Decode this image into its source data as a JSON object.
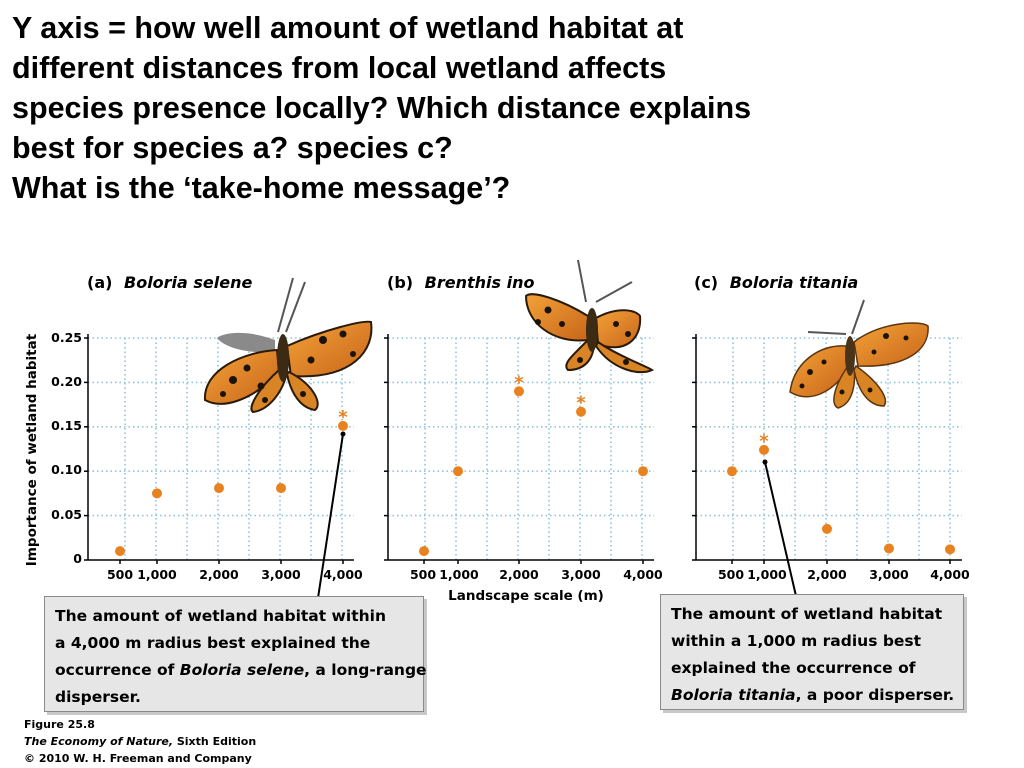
{
  "question": {
    "lines": [
      "Y axis = how well amount of wetland habitat at",
      "different distances from local wetland affects",
      "species presence locally?  Which distance explains",
      "best for species a? species c?",
      "What is the  ‘take-home message’?"
    ]
  },
  "chart_data": [
    {
      "type": "scatter",
      "panel": "(a)",
      "title": "Boloria selene",
      "ylabel": "Importance of wetland habitat",
      "xlabel": "",
      "x": [
        500,
        1000,
        2000,
        3000,
        4000
      ],
      "x_tick_labels": [
        "500",
        "1,000",
        "2,000",
        "3,000",
        "4,000"
      ],
      "y": [
        0.01,
        0.075,
        0.081,
        0.081,
        0.151
      ],
      "significant": [
        false,
        false,
        false,
        false,
        true
      ],
      "ylim": [
        0,
        0.25
      ],
      "y_ticks": [
        "0",
        "0.05",
        "0.10",
        "0.15",
        "0.20",
        "0.25"
      ],
      "grid": true,
      "marker_color": "#e8821e"
    },
    {
      "type": "scatter",
      "panel": "(b)",
      "title": "Brenthis ino",
      "xlabel": "Landscape scale (m)",
      "x": [
        500,
        1000,
        2000,
        3000,
        4000
      ],
      "x_tick_labels": [
        "500",
        "1,000",
        "2,000",
        "3,000",
        "4,000"
      ],
      "y": [
        0.01,
        0.1,
        0.19,
        0.167,
        0.1
      ],
      "significant": [
        false,
        false,
        true,
        true,
        false
      ],
      "ylim": [
        0,
        0.25
      ],
      "grid": true,
      "marker_color": "#e8821e"
    },
    {
      "type": "scatter",
      "panel": "(c)",
      "title": "Boloria titania",
      "xlabel": "",
      "x": [
        500,
        1000,
        2000,
        3000,
        4000
      ],
      "x_tick_labels": [
        "500",
        "1,000",
        "2,000",
        "3,000",
        "4,000"
      ],
      "y": [
        0.1,
        0.124,
        0.035,
        0.013,
        0.012
      ],
      "significant": [
        false,
        true,
        false,
        false,
        false
      ],
      "ylim": [
        0,
        0.25
      ],
      "grid": true,
      "marker_color": "#e8821e"
    }
  ],
  "callouts": {
    "a": {
      "parts": [
        "The amount of wetland habitat within",
        "a 4,000 m radius best explained the",
        "occurrence of ",
        "Boloria selene",
        ", a long-range",
        "disperser."
      ]
    },
    "c": {
      "parts": [
        "The amount of wetland habitat",
        "within a 1,000 m radius best",
        "explained the occurrence of",
        "Boloria titania",
        ", a poor disperser."
      ]
    }
  },
  "caption": {
    "figure": "Figure 25.8",
    "book": "The Economy of Nature,",
    "edition": " Sixth Edition",
    "copyright": "© 2010 W. H. Freeman and Company"
  }
}
